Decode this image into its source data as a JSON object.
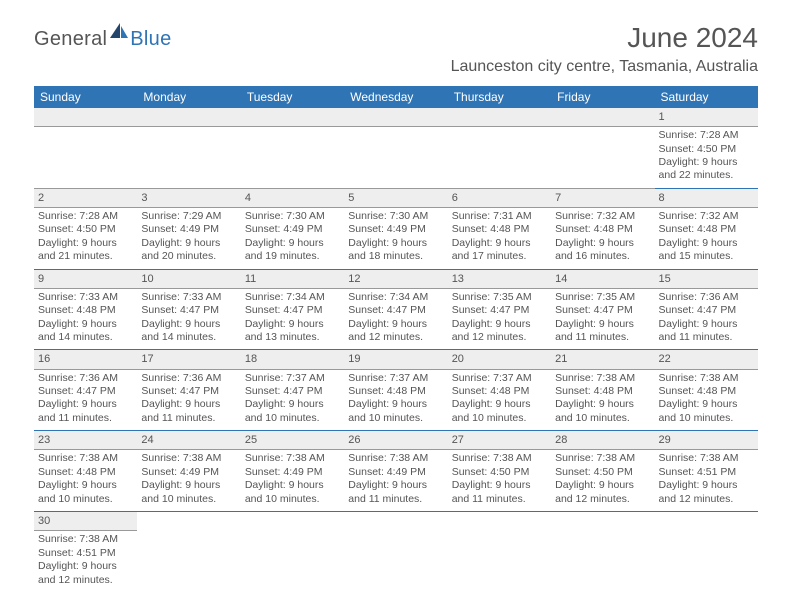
{
  "logo": {
    "part1": "General",
    "part2": "Blue"
  },
  "title": "June 2024",
  "location": "Launceston city centre, Tasmania, Australia",
  "header_bg": "#2f74b5",
  "days": [
    "Sunday",
    "Monday",
    "Tuesday",
    "Wednesday",
    "Thursday",
    "Friday",
    "Saturday"
  ],
  "weeks": [
    [
      null,
      null,
      null,
      null,
      null,
      null,
      {
        "n": "1",
        "sr": "Sunrise: 7:28 AM",
        "ss": "Sunset: 4:50 PM",
        "dl": "Daylight: 9 hours and 22 minutes."
      }
    ],
    [
      {
        "n": "2",
        "sr": "Sunrise: 7:28 AM",
        "ss": "Sunset: 4:50 PM",
        "dl": "Daylight: 9 hours and 21 minutes."
      },
      {
        "n": "3",
        "sr": "Sunrise: 7:29 AM",
        "ss": "Sunset: 4:49 PM",
        "dl": "Daylight: 9 hours and 20 minutes."
      },
      {
        "n": "4",
        "sr": "Sunrise: 7:30 AM",
        "ss": "Sunset: 4:49 PM",
        "dl": "Daylight: 9 hours and 19 minutes."
      },
      {
        "n": "5",
        "sr": "Sunrise: 7:30 AM",
        "ss": "Sunset: 4:49 PM",
        "dl": "Daylight: 9 hours and 18 minutes."
      },
      {
        "n": "6",
        "sr": "Sunrise: 7:31 AM",
        "ss": "Sunset: 4:48 PM",
        "dl": "Daylight: 9 hours and 17 minutes."
      },
      {
        "n": "7",
        "sr": "Sunrise: 7:32 AM",
        "ss": "Sunset: 4:48 PM",
        "dl": "Daylight: 9 hours and 16 minutes."
      },
      {
        "n": "8",
        "sr": "Sunrise: 7:32 AM",
        "ss": "Sunset: 4:48 PM",
        "dl": "Daylight: 9 hours and 15 minutes."
      }
    ],
    [
      {
        "n": "9",
        "sr": "Sunrise: 7:33 AM",
        "ss": "Sunset: 4:48 PM",
        "dl": "Daylight: 9 hours and 14 minutes."
      },
      {
        "n": "10",
        "sr": "Sunrise: 7:33 AM",
        "ss": "Sunset: 4:47 PM",
        "dl": "Daylight: 9 hours and 14 minutes."
      },
      {
        "n": "11",
        "sr": "Sunrise: 7:34 AM",
        "ss": "Sunset: 4:47 PM",
        "dl": "Daylight: 9 hours and 13 minutes."
      },
      {
        "n": "12",
        "sr": "Sunrise: 7:34 AM",
        "ss": "Sunset: 4:47 PM",
        "dl": "Daylight: 9 hours and 12 minutes."
      },
      {
        "n": "13",
        "sr": "Sunrise: 7:35 AM",
        "ss": "Sunset: 4:47 PM",
        "dl": "Daylight: 9 hours and 12 minutes."
      },
      {
        "n": "14",
        "sr": "Sunrise: 7:35 AM",
        "ss": "Sunset: 4:47 PM",
        "dl": "Daylight: 9 hours and 11 minutes."
      },
      {
        "n": "15",
        "sr": "Sunrise: 7:36 AM",
        "ss": "Sunset: 4:47 PM",
        "dl": "Daylight: 9 hours and 11 minutes."
      }
    ],
    [
      {
        "n": "16",
        "sr": "Sunrise: 7:36 AM",
        "ss": "Sunset: 4:47 PM",
        "dl": "Daylight: 9 hours and 11 minutes."
      },
      {
        "n": "17",
        "sr": "Sunrise: 7:36 AM",
        "ss": "Sunset: 4:47 PM",
        "dl": "Daylight: 9 hours and 11 minutes."
      },
      {
        "n": "18",
        "sr": "Sunrise: 7:37 AM",
        "ss": "Sunset: 4:47 PM",
        "dl": "Daylight: 9 hours and 10 minutes."
      },
      {
        "n": "19",
        "sr": "Sunrise: 7:37 AM",
        "ss": "Sunset: 4:48 PM",
        "dl": "Daylight: 9 hours and 10 minutes."
      },
      {
        "n": "20",
        "sr": "Sunrise: 7:37 AM",
        "ss": "Sunset: 4:48 PM",
        "dl": "Daylight: 9 hours and 10 minutes."
      },
      {
        "n": "21",
        "sr": "Sunrise: 7:38 AM",
        "ss": "Sunset: 4:48 PM",
        "dl": "Daylight: 9 hours and 10 minutes."
      },
      {
        "n": "22",
        "sr": "Sunrise: 7:38 AM",
        "ss": "Sunset: 4:48 PM",
        "dl": "Daylight: 9 hours and 10 minutes."
      }
    ],
    [
      {
        "n": "23",
        "sr": "Sunrise: 7:38 AM",
        "ss": "Sunset: 4:48 PM",
        "dl": "Daylight: 9 hours and 10 minutes."
      },
      {
        "n": "24",
        "sr": "Sunrise: 7:38 AM",
        "ss": "Sunset: 4:49 PM",
        "dl": "Daylight: 9 hours and 10 minutes."
      },
      {
        "n": "25",
        "sr": "Sunrise: 7:38 AM",
        "ss": "Sunset: 4:49 PM",
        "dl": "Daylight: 9 hours and 10 minutes."
      },
      {
        "n": "26",
        "sr": "Sunrise: 7:38 AM",
        "ss": "Sunset: 4:49 PM",
        "dl": "Daylight: 9 hours and 11 minutes."
      },
      {
        "n": "27",
        "sr": "Sunrise: 7:38 AM",
        "ss": "Sunset: 4:50 PM",
        "dl": "Daylight: 9 hours and 11 minutes."
      },
      {
        "n": "28",
        "sr": "Sunrise: 7:38 AM",
        "ss": "Sunset: 4:50 PM",
        "dl": "Daylight: 9 hours and 12 minutes."
      },
      {
        "n": "29",
        "sr": "Sunrise: 7:38 AM",
        "ss": "Sunset: 4:51 PM",
        "dl": "Daylight: 9 hours and 12 minutes."
      }
    ],
    [
      {
        "n": "30",
        "sr": "Sunrise: 7:38 AM",
        "ss": "Sunset: 4:51 PM",
        "dl": "Daylight: 9 hours and 12 minutes."
      },
      null,
      null,
      null,
      null,
      null,
      null
    ]
  ]
}
